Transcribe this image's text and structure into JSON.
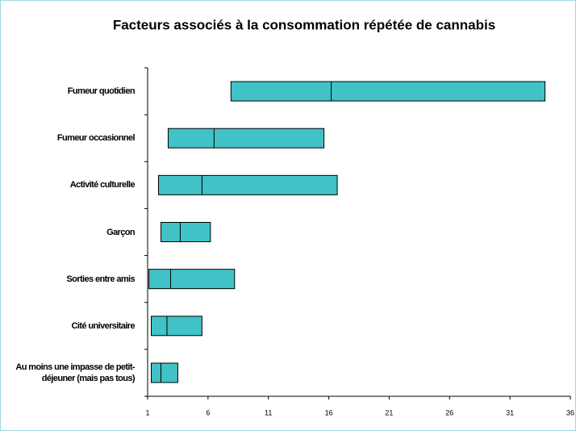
{
  "chart_data": {
    "type": "interval",
    "title": "Facteurs associés à la consommation répétée de cannabis",
    "categories": [
      "Fumeur quotidien",
      "Fumeur occasionnel",
      "Activité culturelle",
      "Garçon",
      "Sorties entre amis",
      "Cité universitaire",
      "Au moins une impasse de petit-déjeuner (mais pas tous)"
    ],
    "low": [
      7.9,
      2.7,
      1.9,
      2.1,
      1.1,
      1.3,
      1.3
    ],
    "values": [
      16.2,
      6.5,
      5.5,
      3.7,
      2.9,
      2.6,
      2.1
    ],
    "high": [
      33.9,
      15.6,
      16.7,
      6.2,
      8.2,
      5.5,
      3.5
    ],
    "color": "#40c2c6",
    "xlim": [
      1,
      36
    ],
    "xticks": [
      1,
      6,
      11,
      16,
      21,
      26,
      31,
      36
    ]
  }
}
